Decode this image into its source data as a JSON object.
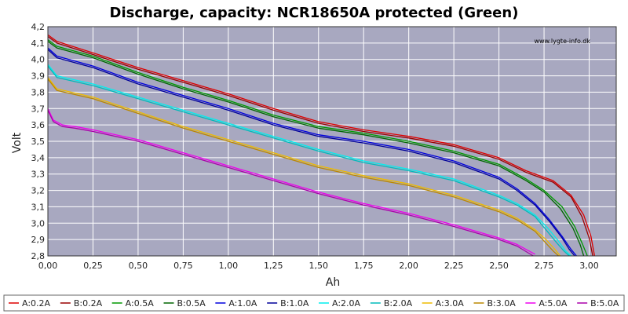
{
  "chart_data": {
    "type": "line",
    "title": "Discharge, capacity: NCR18650A protected (Green)",
    "xlabel": "Ah",
    "ylabel": "Volt",
    "watermark": "www.lygte-info.dk",
    "xlim": [
      0,
      3.15
    ],
    "ylim": [
      2.8,
      4.2
    ],
    "xticks": [
      "0,00",
      "0,25",
      "0,50",
      "0,75",
      "1,00",
      "1,25",
      "1,50",
      "1,75",
      "2,00",
      "2,25",
      "2,50",
      "2,75",
      "3,00"
    ],
    "yticks": [
      "2,8",
      "2,9",
      "3,0",
      "3,1",
      "3,2",
      "3,3",
      "3,4",
      "3,5",
      "3,6",
      "3,7",
      "3,8",
      "3,9",
      "4,0",
      "4,1",
      "4,2"
    ],
    "grid": true,
    "legend_position": "bottom",
    "background_color": "#A8A8C0",
    "series": [
      {
        "name": "A:0.2A",
        "color": "#DD0000",
        "x": [
          0,
          0.05,
          0.25,
          0.5,
          0.75,
          1.0,
          1.25,
          1.5,
          1.75,
          2.0,
          2.25,
          2.5,
          2.65,
          2.8,
          2.9,
          2.97,
          3.01,
          3.03
        ],
        "y": [
          4.15,
          4.11,
          4.04,
          3.95,
          3.87,
          3.79,
          3.7,
          3.62,
          3.57,
          3.53,
          3.48,
          3.4,
          3.32,
          3.26,
          3.17,
          3.05,
          2.92,
          2.8
        ]
      },
      {
        "name": "B:0.2A",
        "color": "#990000",
        "x": [
          0,
          0.05,
          0.25,
          0.5,
          0.75,
          1.0,
          1.25,
          1.5,
          1.75,
          2.0,
          2.25,
          2.5,
          2.65,
          2.8,
          2.9,
          2.96,
          3.0,
          3.02
        ],
        "y": [
          4.14,
          4.1,
          4.03,
          3.94,
          3.86,
          3.78,
          3.69,
          3.61,
          3.56,
          3.52,
          3.47,
          3.39,
          3.31,
          3.25,
          3.16,
          3.04,
          2.91,
          2.8
        ]
      },
      {
        "name": "A:0.5A",
        "color": "#009900",
        "x": [
          0,
          0.05,
          0.25,
          0.5,
          0.75,
          1.0,
          1.25,
          1.5,
          1.75,
          2.0,
          2.25,
          2.5,
          2.65,
          2.75,
          2.85,
          2.92,
          2.96,
          2.99
        ],
        "y": [
          4.12,
          4.08,
          4.02,
          3.92,
          3.83,
          3.75,
          3.66,
          3.59,
          3.55,
          3.5,
          3.44,
          3.36,
          3.27,
          3.2,
          3.1,
          2.98,
          2.88,
          2.8
        ]
      },
      {
        "name": "B:0.5A",
        "color": "#006600",
        "x": [
          0,
          0.05,
          0.25,
          0.5,
          0.75,
          1.0,
          1.25,
          1.5,
          1.75,
          2.0,
          2.25,
          2.5,
          2.65,
          2.75,
          2.84,
          2.91,
          2.95,
          2.97
        ],
        "y": [
          4.11,
          4.07,
          4.01,
          3.91,
          3.82,
          3.74,
          3.65,
          3.58,
          3.54,
          3.49,
          3.43,
          3.35,
          3.26,
          3.19,
          3.09,
          2.97,
          2.87,
          2.8
        ]
      },
      {
        "name": "A:1.0A",
        "color": "#0000DD",
        "x": [
          0,
          0.05,
          0.25,
          0.5,
          0.75,
          1.0,
          1.25,
          1.5,
          1.75,
          2.0,
          2.25,
          2.5,
          2.6,
          2.7,
          2.78,
          2.85,
          2.9,
          2.93
        ],
        "y": [
          4.07,
          4.02,
          3.96,
          3.86,
          3.78,
          3.7,
          3.61,
          3.54,
          3.5,
          3.45,
          3.38,
          3.28,
          3.21,
          3.12,
          3.02,
          2.92,
          2.84,
          2.8
        ]
      },
      {
        "name": "B:1.0A",
        "color": "#000099",
        "x": [
          0,
          0.05,
          0.25,
          0.5,
          0.75,
          1.0,
          1.25,
          1.5,
          1.75,
          2.0,
          2.25,
          2.5,
          2.6,
          2.7,
          2.78,
          2.85,
          2.89,
          2.92
        ],
        "y": [
          4.06,
          4.01,
          3.95,
          3.85,
          3.77,
          3.69,
          3.6,
          3.53,
          3.49,
          3.44,
          3.37,
          3.27,
          3.2,
          3.11,
          3.01,
          2.91,
          2.84,
          2.8
        ]
      },
      {
        "name": "A:2.0A",
        "color": "#00EEEE",
        "x": [
          0,
          0.05,
          0.25,
          0.5,
          0.75,
          1.0,
          1.25,
          1.5,
          1.75,
          2.0,
          2.25,
          2.5,
          2.6,
          2.7,
          2.77,
          2.83,
          2.87,
          2.9
        ],
        "y": [
          3.97,
          3.9,
          3.85,
          3.77,
          3.69,
          3.61,
          3.53,
          3.45,
          3.38,
          3.33,
          3.27,
          3.17,
          3.12,
          3.05,
          2.97,
          2.89,
          2.83,
          2.8
        ]
      },
      {
        "name": "B:2.0A",
        "color": "#00BBBB",
        "x": [
          0,
          0.05,
          0.25,
          0.5,
          0.75,
          1.0,
          1.25,
          1.5,
          1.75,
          2.0,
          2.25,
          2.5,
          2.6,
          2.7,
          2.76,
          2.82,
          2.86,
          2.89
        ],
        "y": [
          3.96,
          3.89,
          3.84,
          3.76,
          3.68,
          3.6,
          3.52,
          3.44,
          3.37,
          3.32,
          3.26,
          3.16,
          3.11,
          3.04,
          2.96,
          2.88,
          2.83,
          2.8
        ]
      },
      {
        "name": "A:3.0A",
        "color": "#EEBB00",
        "x": [
          0,
          0.05,
          0.25,
          0.5,
          0.75,
          1.0,
          1.25,
          1.5,
          1.75,
          2.0,
          2.25,
          2.5,
          2.6,
          2.7,
          2.76,
          2.81,
          2.84
        ],
        "y": [
          3.89,
          3.82,
          3.77,
          3.68,
          3.59,
          3.51,
          3.43,
          3.35,
          3.29,
          3.24,
          3.17,
          3.08,
          3.03,
          2.96,
          2.9,
          2.84,
          2.8
        ]
      },
      {
        "name": "B:3.0A",
        "color": "#BB8800",
        "x": [
          0,
          0.05,
          0.25,
          0.5,
          0.75,
          1.0,
          1.25,
          1.5,
          1.75,
          2.0,
          2.25,
          2.5,
          2.6,
          2.7,
          2.75,
          2.8,
          2.83
        ],
        "y": [
          3.88,
          3.81,
          3.76,
          3.67,
          3.58,
          3.5,
          3.42,
          3.34,
          3.28,
          3.23,
          3.16,
          3.07,
          3.02,
          2.95,
          2.89,
          2.83,
          2.8
        ]
      },
      {
        "name": "A:5.0A",
        "color": "#EE00EE",
        "x": [
          0,
          0.03,
          0.08,
          0.15,
          0.25,
          0.5,
          0.75,
          1.0,
          1.25,
          1.5,
          1.75,
          2.0,
          2.25,
          2.5,
          2.6,
          2.7
        ],
        "y": [
          3.7,
          3.63,
          3.6,
          3.59,
          3.57,
          3.51,
          3.43,
          3.35,
          3.27,
          3.19,
          3.12,
          3.06,
          2.99,
          2.91,
          2.87,
          2.81
        ]
      },
      {
        "name": "B:5.0A",
        "color": "#AA00AA",
        "x": [
          0,
          0.03,
          0.08,
          0.15,
          0.25,
          0.5,
          0.75,
          1.0,
          1.25,
          1.5,
          1.75,
          2.0,
          2.25,
          2.5,
          2.6,
          2.69
        ],
        "y": [
          3.69,
          3.62,
          3.59,
          3.58,
          3.56,
          3.5,
          3.42,
          3.34,
          3.26,
          3.18,
          3.11,
          3.05,
          2.98,
          2.9,
          2.86,
          2.8
        ]
      }
    ]
  }
}
